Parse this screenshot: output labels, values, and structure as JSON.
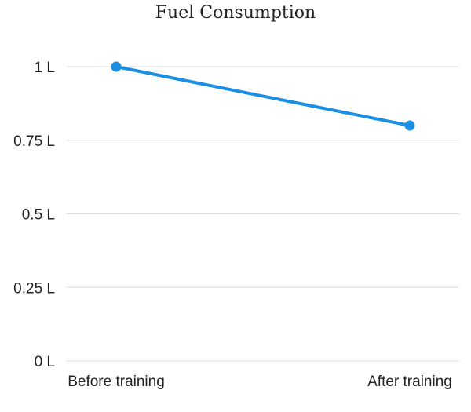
{
  "chart_data": {
    "type": "line",
    "title": "Fuel Consumption",
    "categories": [
      "Before training",
      "After training"
    ],
    "series": [
      {
        "values": [
          1.0,
          0.8
        ],
        "color": "#1a8fe3"
      }
    ],
    "y_ticks": [
      {
        "value": 0,
        "label": "0 L"
      },
      {
        "value": 0.25,
        "label": "0.25 L"
      },
      {
        "value": 0.5,
        "label": "0.5 L"
      },
      {
        "value": 0.75,
        "label": "0.75 L"
      },
      {
        "value": 1,
        "label": "1 L"
      }
    ],
    "ylim": [
      0,
      1
    ],
    "grid": true,
    "legend": "none",
    "xlabel": "",
    "ylabel": ""
  }
}
